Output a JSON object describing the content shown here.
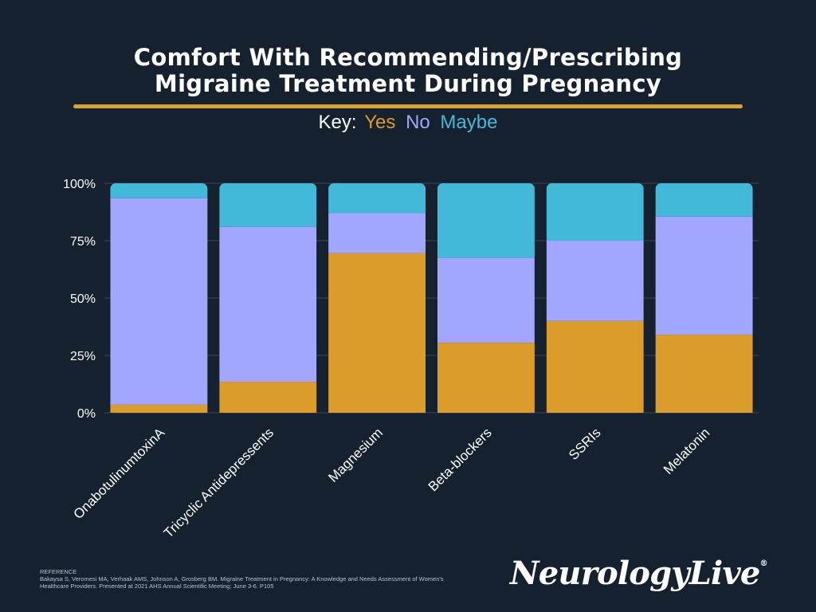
{
  "title_line1": "Comfort With Recommending/Prescribing",
  "title_line2": "Migraine Treatment During Pregnancy",
  "legend": {
    "label": "Key:",
    "items": [
      {
        "name": "Yes",
        "color": "#dc9c2a"
      },
      {
        "name": "No",
        "color": "#a2a6ff"
      },
      {
        "name": "Maybe",
        "color": "#43b9da"
      }
    ]
  },
  "chart_data": {
    "type": "bar",
    "stacked": true,
    "title": "Comfort With Recommending/Prescribing Migraine Treatment During Pregnancy",
    "categories": [
      "OnabotulinumtoxinA",
      "Tricyclic Antidepressents",
      "Magnesium",
      "Beta-blockers",
      "SSRIs",
      "Melatonin"
    ],
    "series": [
      {
        "name": "Yes",
        "color": "#dc9c2a",
        "values": [
          3.5,
          13.5,
          69.5,
          30.5,
          40,
          34
        ]
      },
      {
        "name": "No",
        "color": "#a2a6ff",
        "values": [
          90,
          67.5,
          17.5,
          37,
          35,
          51.5
        ]
      },
      {
        "name": "Maybe",
        "color": "#43b9da",
        "values": [
          6.5,
          19,
          13,
          32.5,
          25,
          14.5
        ]
      }
    ],
    "yticks": [
      "0%",
      "25%",
      "50%",
      "75%",
      "100%"
    ],
    "ylim": [
      0,
      100
    ],
    "xlabel": "",
    "ylabel": "",
    "grid": true
  },
  "reference": {
    "heading": "REFERENCE",
    "text": "Bakaysa S, Veromesi MA, Verhaak AMS, Johnson A, Grosberg BM. Migraine Treatment in Pregnancy: A Knowledge and Needs Assessment of Women's Healthcare Providers. Presented at 2021 AHS Annual Scientific Meeting; June 3-6. P105"
  },
  "logo": {
    "text": "NeurologyLive",
    "mark": "®"
  }
}
